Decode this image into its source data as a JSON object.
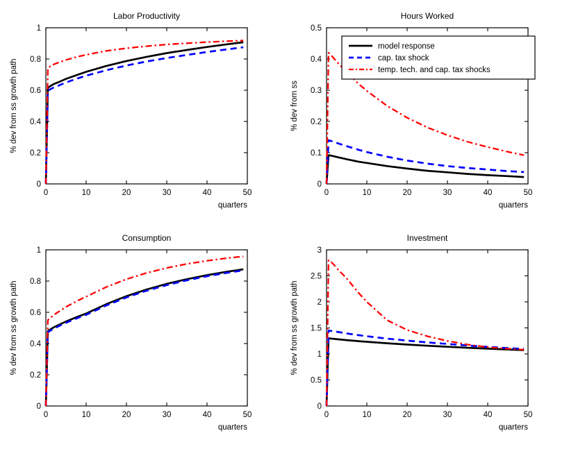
{
  "figure": {
    "background": "#ffffff",
    "axis_color": "#000000",
    "text_color": "#000000"
  },
  "legend": {
    "entries": [
      {
        "label": "model response",
        "color": "#000000",
        "style": "solid"
      },
      {
        "label": "cap. tax shock",
        "color": "#0000ff",
        "style": "dashed"
      },
      {
        "label": "temp. tech. and cap. tax shocks",
        "color": "#ff0000",
        "style": "dashdot"
      }
    ]
  },
  "chart_data": [
    {
      "type": "line",
      "title": "Labor Productivity",
      "xlabel": "quarters",
      "ylabel": "% dev from ss growth path",
      "xlim": [
        0,
        50
      ],
      "ylim": [
        0,
        1
      ],
      "xticks": [
        0,
        10,
        20,
        30,
        40,
        50
      ],
      "xtick_labels": [
        "0",
        "10",
        "20",
        "30",
        "40",
        "50"
      ],
      "yticks": [
        0,
        0.2,
        0.4,
        0.6,
        0.8,
        1
      ],
      "ytick_labels": [
        "0",
        "0.2",
        "0.4",
        "0.6",
        "0.8",
        "1"
      ],
      "grid": false,
      "show_legend": false,
      "x": [
        0,
        0.5,
        1,
        2,
        3,
        5,
        8,
        10,
        15,
        20,
        25,
        30,
        35,
        40,
        45,
        49
      ],
      "series": [
        {
          "name": "model response",
          "color": "#000000",
          "style": "solid",
          "y": [
            0,
            0.615,
            0.625,
            0.64,
            0.65,
            0.673,
            0.7,
            0.718,
            0.755,
            0.787,
            0.814,
            0.838,
            0.858,
            0.877,
            0.894,
            0.907
          ]
        },
        {
          "name": "cap. tax shock",
          "color": "#0000ff",
          "style": "dashed",
          "y": [
            0,
            0.595,
            0.605,
            0.618,
            0.628,
            0.65,
            0.677,
            0.693,
            0.728,
            0.758,
            0.784,
            0.806,
            0.826,
            0.845,
            0.862,
            0.875
          ]
        },
        {
          "name": "temp. tech. and cap. tax shocks",
          "color": "#ff0000",
          "style": "dashdot",
          "y": [
            0,
            0.74,
            0.752,
            0.766,
            0.776,
            0.794,
            0.815,
            0.827,
            0.852,
            0.869,
            0.882,
            0.893,
            0.901,
            0.908,
            0.914,
            0.918
          ]
        }
      ]
    },
    {
      "type": "line",
      "title": "Hours Worked",
      "xlabel": "quarters",
      "ylabel": "% dev from ss",
      "xlim": [
        0,
        50
      ],
      "ylim": [
        0,
        0.5
      ],
      "xticks": [
        0,
        10,
        20,
        30,
        40,
        50
      ],
      "xtick_labels": [
        "0",
        "10",
        "20",
        "30",
        "40",
        "50"
      ],
      "yticks": [
        0,
        0.1,
        0.2,
        0.3,
        0.4,
        0.5
      ],
      "ytick_labels": [
        "0",
        "0.1",
        "0.2",
        "0.3",
        "0.4",
        "0.5"
      ],
      "grid": false,
      "show_legend": true,
      "x": [
        0,
        0.5,
        1,
        2,
        3,
        5,
        8,
        10,
        15,
        20,
        25,
        30,
        35,
        40,
        45,
        49
      ],
      "series": [
        {
          "name": "model response",
          "color": "#000000",
          "style": "solid",
          "y": [
            0,
            0.092,
            0.091,
            0.088,
            0.085,
            0.079,
            0.071,
            0.067,
            0.057,
            0.049,
            0.042,
            0.037,
            0.032,
            0.028,
            0.025,
            0.022
          ]
        },
        {
          "name": "cap. tax shock",
          "color": "#0000ff",
          "style": "dashed",
          "y": [
            0,
            0.14,
            0.138,
            0.134,
            0.129,
            0.121,
            0.109,
            0.102,
            0.087,
            0.075,
            0.065,
            0.057,
            0.051,
            0.046,
            0.041,
            0.038
          ]
        },
        {
          "name": "temp. tech. and cap. tax shocks",
          "color": "#ff0000",
          "style": "dashdot",
          "y": [
            0,
            0.42,
            0.414,
            0.399,
            0.385,
            0.357,
            0.32,
            0.298,
            0.25,
            0.212,
            0.181,
            0.156,
            0.135,
            0.118,
            0.103,
            0.092
          ]
        }
      ]
    },
    {
      "type": "line",
      "title": "Consumption",
      "xlabel": "quarters",
      "ylabel": "% dev from ss growth path",
      "xlim": [
        0,
        50
      ],
      "ylim": [
        0,
        1
      ],
      "xticks": [
        0,
        10,
        20,
        30,
        40,
        50
      ],
      "xtick_labels": [
        "0",
        "10",
        "20",
        "30",
        "40",
        "50"
      ],
      "yticks": [
        0,
        0.2,
        0.4,
        0.6,
        0.8,
        1
      ],
      "ytick_labels": [
        "0",
        "0.2",
        "0.4",
        "0.6",
        "0.8",
        "1"
      ],
      "grid": false,
      "show_legend": false,
      "x": [
        0,
        0.5,
        1,
        2,
        3,
        5,
        8,
        10,
        15,
        20,
        25,
        30,
        35,
        40,
        45,
        49
      ],
      "series": [
        {
          "name": "model response",
          "color": "#000000",
          "style": "solid",
          "y": [
            0,
            0.48,
            0.489,
            0.504,
            0.517,
            0.541,
            0.573,
            0.592,
            0.652,
            0.703,
            0.746,
            0.782,
            0.812,
            0.838,
            0.86,
            0.875
          ]
        },
        {
          "name": "cap. tax shock",
          "color": "#0000ff",
          "style": "dashed",
          "y": [
            0,
            0.473,
            0.481,
            0.496,
            0.509,
            0.533,
            0.565,
            0.584,
            0.644,
            0.695,
            0.738,
            0.774,
            0.805,
            0.831,
            0.853,
            0.869
          ]
        },
        {
          "name": "temp. tech. and cap. tax shocks",
          "color": "#ff0000",
          "style": "dashdot",
          "y": [
            0,
            0.55,
            0.562,
            0.583,
            0.601,
            0.634,
            0.676,
            0.7,
            0.762,
            0.812,
            0.852,
            0.884,
            0.91,
            0.93,
            0.947,
            0.958
          ]
        }
      ]
    },
    {
      "type": "line",
      "title": "Investment",
      "xlabel": "quarters",
      "ylabel": "% dev from ss growth path",
      "xlim": [
        0,
        50
      ],
      "ylim": [
        0,
        3
      ],
      "xticks": [
        0,
        10,
        20,
        30,
        40,
        50
      ],
      "xtick_labels": [
        "0",
        "10",
        "20",
        "30",
        "40",
        "50"
      ],
      "yticks": [
        0,
        0.5,
        1,
        1.5,
        2,
        2.5,
        3
      ],
      "ytick_labels": [
        "0",
        "0.5",
        "1",
        "1.5",
        "2",
        "2.5",
        "3"
      ],
      "grid": false,
      "show_legend": false,
      "x": [
        0,
        0.5,
        1,
        2,
        3,
        5,
        8,
        10,
        15,
        20,
        25,
        30,
        35,
        40,
        45,
        49
      ],
      "series": [
        {
          "name": "model response",
          "color": "#000000",
          "style": "solid",
          "y": [
            0,
            1.3,
            1.296,
            1.288,
            1.28,
            1.265,
            1.245,
            1.233,
            1.205,
            1.18,
            1.158,
            1.138,
            1.119,
            1.101,
            1.085,
            1.073
          ]
        },
        {
          "name": "cap. tax shock",
          "color": "#0000ff",
          "style": "dashed",
          "y": [
            0,
            1.45,
            1.444,
            1.432,
            1.42,
            1.394,
            1.36,
            1.34,
            1.295,
            1.256,
            1.222,
            1.192,
            1.162,
            1.135,
            1.112,
            1.095
          ]
        },
        {
          "name": "temp. tech. and cap. tax shocks",
          "color": "#ff0000",
          "style": "dashdot",
          "y": [
            0,
            2.8,
            2.78,
            2.7,
            2.61,
            2.45,
            2.17,
            2.0,
            1.65,
            1.46,
            1.34,
            1.25,
            1.18,
            1.13,
            1.1,
            1.08
          ]
        }
      ]
    }
  ]
}
